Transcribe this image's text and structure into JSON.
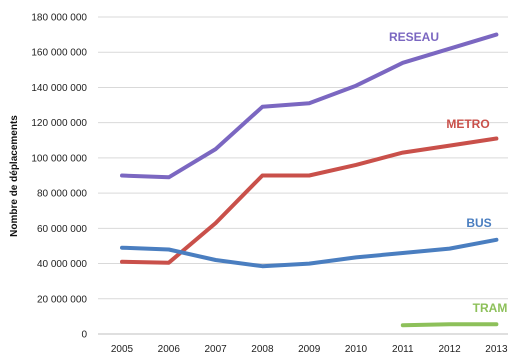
{
  "chart_data": {
    "type": "line",
    "title": "",
    "xlabel": "",
    "ylabel": "Nombre de déplacements",
    "x": [
      "2005",
      "2006",
      "2007",
      "2008",
      "2009",
      "2010",
      "2011",
      "2012",
      "2013"
    ],
    "ylim": [
      0,
      180000000
    ],
    "yticks": [
      0,
      20000000,
      40000000,
      60000000,
      80000000,
      100000000,
      120000000,
      140000000,
      160000000,
      180000000
    ],
    "ytick_labels": [
      "0",
      "20 000 000",
      "40 000 000",
      "60 000 000",
      "80 000 000",
      "100 000 000",
      "120 000 000",
      "140 000 000",
      "160 000 000",
      "180 000 000"
    ],
    "grid": "horizontal",
    "series": [
      {
        "name": "RESEAU",
        "color": "#7B67C1",
        "values": [
          90000000,
          89000000,
          105000000,
          129000000,
          131000000,
          141000000,
          154000000,
          162000000,
          170000000
        ]
      },
      {
        "name": "METRO",
        "color": "#C9504A",
        "values": [
          41000000,
          40500000,
          63000000,
          90000000,
          90000000,
          96000000,
          103000000,
          107000000,
          111000000
        ]
      },
      {
        "name": "BUS",
        "color": "#4A7EC0",
        "values": [
          49000000,
          48000000,
          42000000,
          38500000,
          40000000,
          43500000,
          46000000,
          48500000,
          53500000
        ]
      },
      {
        "name": "TRAM",
        "color": "#8DC05A",
        "values": [
          null,
          null,
          null,
          null,
          null,
          null,
          5000000,
          5500000,
          5500000
        ]
      }
    ]
  }
}
